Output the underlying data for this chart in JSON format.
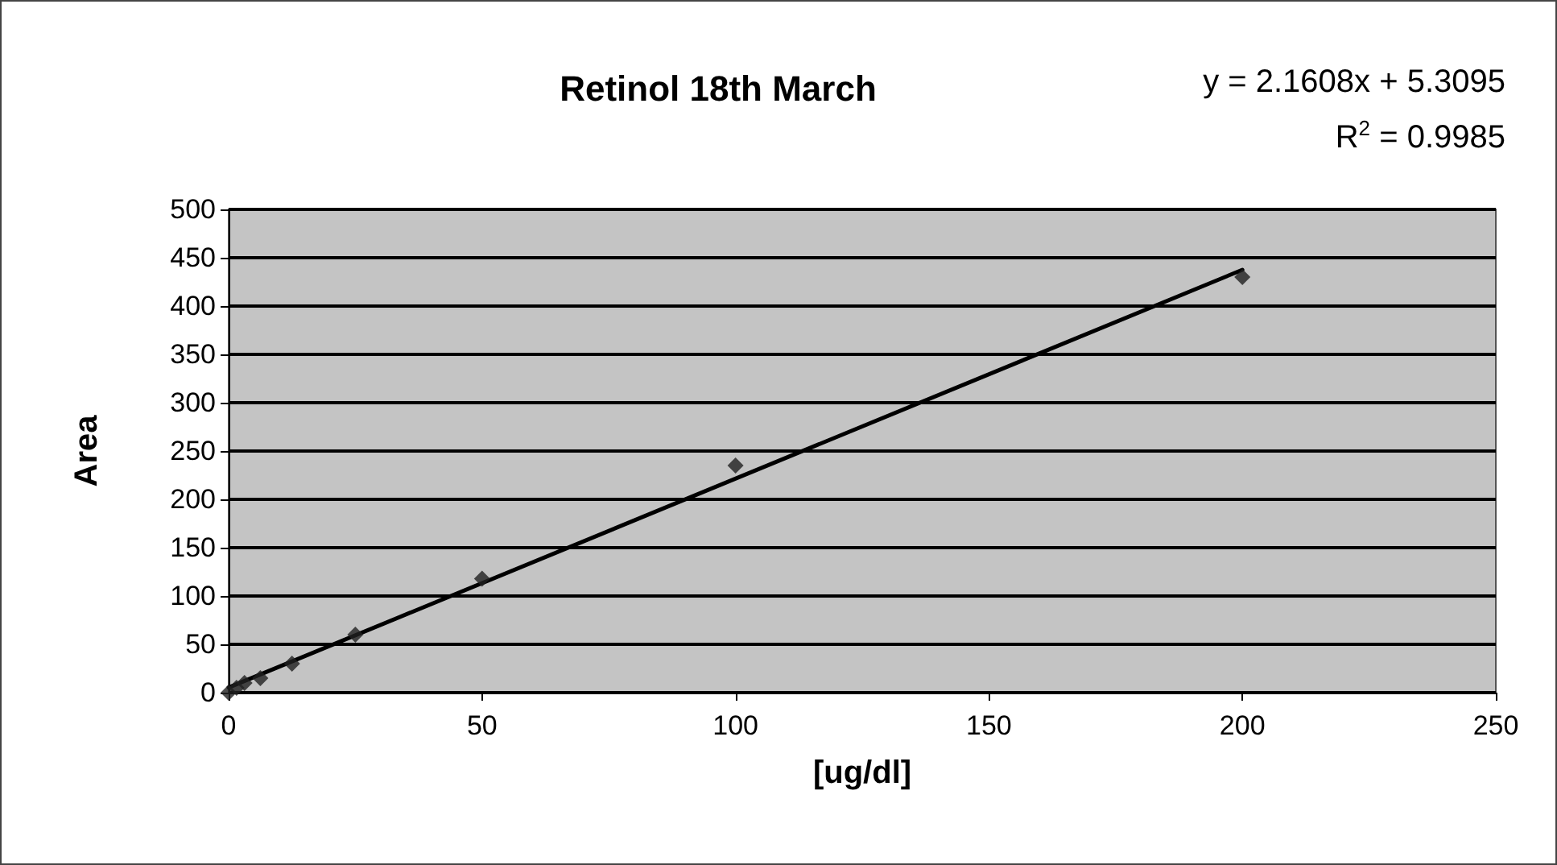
{
  "chart_data": {
    "type": "scatter",
    "title": "Retinol 18th March",
    "xlabel": "[ug/dl]",
    "ylabel": "Area",
    "annotations": [
      "y = 2.1608x + 5.3095",
      "R$^{2}$ = 0.9985"
    ],
    "series": [
      {
        "color": "#202020",
        "marker": "diamond",
        "x": [
          0,
          1.5625,
          3.125,
          6.25,
          12.5,
          25,
          50,
          100,
          200
        ],
        "values": [
          0,
          5,
          10,
          15,
          30,
          60,
          118,
          235,
          430
        ]
      },
      {
        "type": "line",
        "color": "#000000",
        "marker": "none",
        "line_style": "solid",
        "x": [
          0,
          200
        ],
        "values": [
          5.3,
          437.5
        ]
      }
    ],
    "xlim": [
      0,
      250
    ],
    "xticks": [
      0,
      50,
      100,
      150,
      200,
      250
    ],
    "ylim": [
      0,
      500
    ],
    "yticks": [
      0,
      50,
      100,
      150,
      200,
      250,
      300,
      350,
      400,
      450,
      500
    ],
    "grid": "y"
  }
}
